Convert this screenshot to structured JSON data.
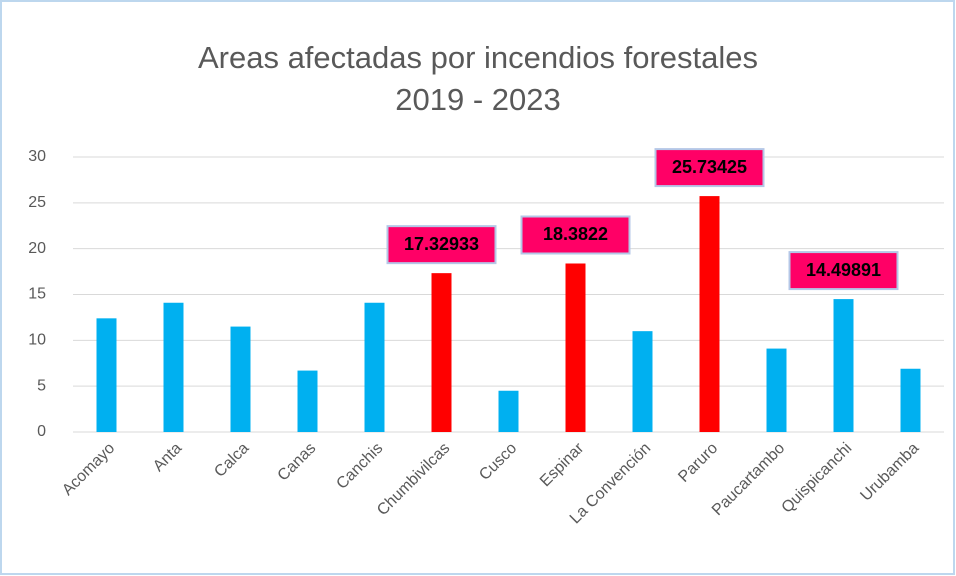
{
  "chart_data": {
    "type": "bar",
    "title": [
      "Areas afectadas por incendios forestales",
      "2019 - 2023"
    ],
    "categories": [
      "Acomayo",
      "Anta",
      "Calca",
      "Canas",
      "Canchis",
      "Chumbivilcas",
      "Cusco",
      "Espinar",
      "La Convención",
      "Paruro",
      "Paucartambo",
      "Quispicanchi",
      "Urubamba"
    ],
    "values": [
      12.4,
      14.1,
      11.5,
      6.7,
      14.1,
      17.32933,
      4.5,
      18.3822,
      11.0,
      25.73425,
      9.1,
      14.49891,
      6.9
    ],
    "value_labels": [
      null,
      null,
      null,
      null,
      null,
      "17.32933",
      null,
      "18.3822",
      null,
      "25.73425",
      null,
      "14.49891",
      null
    ],
    "colors": [
      "#00b0f0",
      "#00b0f0",
      "#00b0f0",
      "#00b0f0",
      "#00b0f0",
      "#ff0000",
      "#00b0f0",
      "#ff0000",
      "#00b0f0",
      "#ff0000",
      "#00b0f0",
      "#00b0f0",
      "#00b0f0"
    ],
    "label_fill": "#ff0066",
    "ylim": [
      0,
      30
    ],
    "yticks": [
      0,
      5,
      10,
      15,
      20,
      25,
      30
    ],
    "grid": true
  }
}
